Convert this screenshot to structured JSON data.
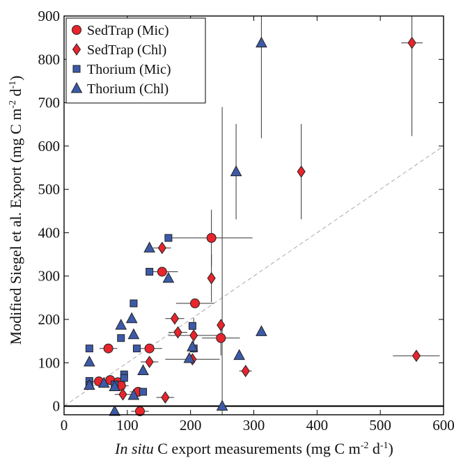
{
  "chart_data": {
    "type": "scatter",
    "title": "",
    "xlabel_italic": "In situ",
    "xlabel_rest": " C export measurements (mg C m",
    "xlabel_sup1": "-2",
    "xlabel_mid": " d",
    "xlabel_sup2": "-1",
    "xlabel_end": ")",
    "ylabel_main": "Modified Siegel et al. Export (mg C m",
    "ylabel_sup1": "-2",
    "ylabel_mid": " d",
    "ylabel_sup2": "-1",
    "ylabel_end": ")",
    "xlim": [
      0,
      600
    ],
    "ylim": [
      -20,
      900
    ],
    "x_ticks": [
      0,
      100,
      200,
      300,
      400,
      500,
      600
    ],
    "y_ticks": [
      0,
      100,
      200,
      300,
      400,
      500,
      600,
      700,
      800,
      900
    ],
    "reference_line": {
      "style": "dashed",
      "description": "1:1",
      "from": [
        0,
        0
      ],
      "to": [
        600,
        600
      ]
    },
    "zero_line": true,
    "legend_placement": "top-left",
    "colors": {
      "red": "#e8242c",
      "blue": "#3c5aa8",
      "error_bar": "#333333",
      "ref_line": "#aaaaaa"
    },
    "series": [
      {
        "name": "SedTrap (Mic)",
        "marker": "circle",
        "color": "#e8242c",
        "points": [
          {
            "x": 70,
            "y": 133,
            "xerr": 14,
            "yerr": 0
          },
          {
            "x": 55,
            "y": 57,
            "xerr": 17,
            "yerr": 0
          },
          {
            "x": 73,
            "y": 60,
            "xerr": 15,
            "yerr": 0
          },
          {
            "x": 85,
            "y": 55,
            "xerr": 12,
            "yerr": 0
          },
          {
            "x": 90,
            "y": 47,
            "xerr": 12,
            "yerr": 0
          },
          {
            "x": 117,
            "y": 33,
            "xerr": 13,
            "yerr": 0
          },
          {
            "x": 120,
            "y": -12,
            "xerr": 14,
            "yerr": 0
          },
          {
            "x": 135,
            "y": 133,
            "xerr": 20,
            "yerr": 0
          },
          {
            "x": 155,
            "y": 310,
            "xerr": 25,
            "yerr": 0
          },
          {
            "x": 207,
            "y": 237,
            "xerr": 30,
            "yerr": 0
          },
          {
            "x": 233,
            "y": 388,
            "xerr": 65,
            "yerr": 65
          },
          {
            "x": 248,
            "y": 157,
            "xerr": 30,
            "yerr": 40
          }
        ]
      },
      {
        "name": "SedTrap (Chl)",
        "marker": "diamond",
        "color": "#e8242c",
        "points": [
          {
            "x": 93,
            "y": 27,
            "xerr": 13,
            "yerr": 0
          },
          {
            "x": 135,
            "y": 102,
            "xerr": 14,
            "yerr": 0
          },
          {
            "x": 155,
            "y": 365,
            "xerr": 14,
            "yerr": 0
          },
          {
            "x": 160,
            "y": 20,
            "xerr": 14,
            "yerr": 0
          },
          {
            "x": 175,
            "y": 202,
            "xerr": 15,
            "yerr": 0
          },
          {
            "x": 180,
            "y": 170,
            "xerr": 15,
            "yerr": 0
          },
          {
            "x": 203,
            "y": 108,
            "xerr": 43,
            "yerr": 0
          },
          {
            "x": 205,
            "y": 163,
            "xerr": 40,
            "yerr": 40
          },
          {
            "x": 233,
            "y": 295,
            "xerr": 0,
            "yerr": 55
          },
          {
            "x": 248,
            "y": 187,
            "xerr": 0,
            "yerr": 0
          },
          {
            "x": 287,
            "y": 81,
            "xerr": 10,
            "yerr": 0
          },
          {
            "x": 375,
            "y": 541,
            "xerr": 0,
            "yerr": 110
          },
          {
            "x": 550,
            "y": 838,
            "xerr": 17,
            "yerr": 215
          },
          {
            "x": 557,
            "y": 116,
            "xerr": 37,
            "yerr": 0
          }
        ]
      },
      {
        "name": "Thorium (Mic)",
        "marker": "square",
        "color": "#3c5aa8",
        "points": [
          {
            "x": 40,
            "y": 133,
            "xerr": 0,
            "yerr": 0
          },
          {
            "x": 40,
            "y": 58,
            "xerr": 0,
            "yerr": 0
          },
          {
            "x": 40,
            "y": 48,
            "xerr": 0,
            "yerr": 0
          },
          {
            "x": 80,
            "y": 50,
            "xerr": 0,
            "yerr": 0
          },
          {
            "x": 90,
            "y": 157,
            "xerr": 0,
            "yerr": 0
          },
          {
            "x": 95,
            "y": 73,
            "xerr": 0,
            "yerr": 0
          },
          {
            "x": 95,
            "y": 65,
            "xerr": 0,
            "yerr": 0
          },
          {
            "x": 110,
            "y": 237,
            "xerr": 0,
            "yerr": 0
          },
          {
            "x": 115,
            "y": 133,
            "xerr": 0,
            "yerr": 0
          },
          {
            "x": 125,
            "y": 33,
            "xerr": 0,
            "yerr": 0
          },
          {
            "x": 135,
            "y": 310,
            "xerr": 0,
            "yerr": 0
          },
          {
            "x": 165,
            "y": 388,
            "xerr": 0,
            "yerr": 0
          },
          {
            "x": 203,
            "y": 185,
            "xerr": 0,
            "yerr": 0
          },
          {
            "x": 205,
            "y": 133,
            "xerr": 0,
            "yerr": 0
          }
        ]
      },
      {
        "name": "Thorium (Chl)",
        "marker": "triangle",
        "color": "#3c5aa8",
        "points": [
          {
            "x": 40,
            "y": 102,
            "xerr": 0,
            "yerr": 0
          },
          {
            "x": 40,
            "y": 48,
            "xerr": 0,
            "yerr": 0
          },
          {
            "x": 63,
            "y": 53,
            "xerr": 0,
            "yerr": 0
          },
          {
            "x": 80,
            "y": 45,
            "xerr": 0,
            "yerr": 0
          },
          {
            "x": 80,
            "y": -12,
            "xerr": 0,
            "yerr": 0
          },
          {
            "x": 90,
            "y": 187,
            "xerr": 0,
            "yerr": 0
          },
          {
            "x": 107,
            "y": 202,
            "xerr": 0,
            "yerr": 0
          },
          {
            "x": 110,
            "y": 165,
            "xerr": 0,
            "yerr": 0
          },
          {
            "x": 110,
            "y": 25,
            "xerr": 0,
            "yerr": 0
          },
          {
            "x": 125,
            "y": 82,
            "xerr": 0,
            "yerr": 0
          },
          {
            "x": 135,
            "y": 365,
            "xerr": 0,
            "yerr": 0
          },
          {
            "x": 165,
            "y": 295,
            "xerr": 0,
            "yerr": 0
          },
          {
            "x": 198,
            "y": 110,
            "xerr": 0,
            "yerr": 0
          },
          {
            "x": 203,
            "y": 137,
            "xerr": 0,
            "yerr": 0
          },
          {
            "x": 250,
            "y": 0,
            "xerr": 0,
            "yerr": 690
          },
          {
            "x": 272,
            "y": 541,
            "xerr": 0,
            "yerr": 110
          },
          {
            "x": 277,
            "y": 117,
            "xerr": 0,
            "yerr": 0
          },
          {
            "x": 312,
            "y": 172,
            "xerr": 0,
            "yerr": 0
          },
          {
            "x": 312,
            "y": 838,
            "xerr": 0,
            "yerr": 220
          }
        ]
      }
    ]
  }
}
